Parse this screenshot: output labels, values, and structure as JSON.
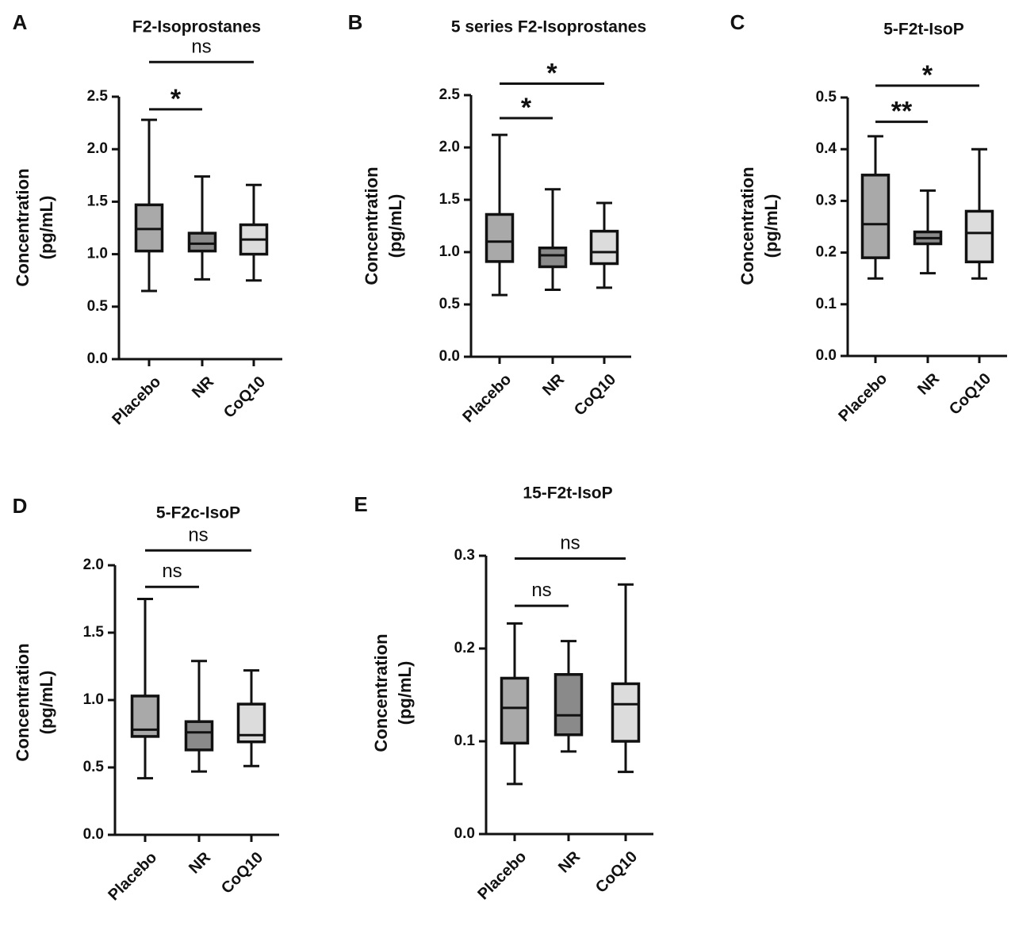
{
  "colors": {
    "Placebo": "#a9a9a9",
    "NR": "#8a8a8a",
    "CoQ10": "#dcdcdc",
    "stroke": "#111111"
  },
  "chart_data": [
    {
      "type": "box",
      "panel": "A",
      "title": "F2-Isoprostanes",
      "ylabel": [
        "Concentration",
        "(pg/mL)"
      ],
      "ylim": [
        0,
        2.5
      ],
      "yticks": [
        "0.0",
        "0.5",
        "1.0",
        "1.5",
        "2.0",
        "2.5"
      ],
      "categories": [
        "Placebo",
        "NR",
        "CoQ10"
      ],
      "boxes": [
        {
          "name": "Placebo",
          "min": 0.65,
          "q1": 1.03,
          "median": 1.24,
          "q3": 1.47,
          "max": 2.28
        },
        {
          "name": "NR",
          "min": 0.76,
          "q1": 1.03,
          "median": 1.1,
          "q3": 1.2,
          "max": 1.74
        },
        {
          "name": "CoQ10",
          "min": 0.75,
          "q1": 1.0,
          "median": 1.14,
          "q3": 1.28,
          "max": 1.66
        }
      ],
      "significance": [
        {
          "from": "Placebo",
          "to": "NR",
          "label": "*",
          "level": 2.38
        },
        {
          "from": "Placebo",
          "to": "CoQ10",
          "label": "ns",
          "level": 2.83
        }
      ]
    },
    {
      "type": "box",
      "panel": "B",
      "title": "5 series F2-Isoprostanes",
      "ylabel": [
        "Concentration",
        "(pg/mL)"
      ],
      "ylim": [
        0,
        2.5
      ],
      "yticks": [
        "0.0",
        "0.5",
        "1.0",
        "1.5",
        "2.0",
        "2.5"
      ],
      "categories": [
        "Placebo",
        "NR",
        "CoQ10"
      ],
      "boxes": [
        {
          "name": "Placebo",
          "min": 0.59,
          "q1": 0.91,
          "median": 1.1,
          "q3": 1.36,
          "max": 2.12
        },
        {
          "name": "NR",
          "min": 0.64,
          "q1": 0.86,
          "median": 0.97,
          "q3": 1.04,
          "max": 1.6
        },
        {
          "name": "CoQ10",
          "min": 0.66,
          "q1": 0.89,
          "median": 1.0,
          "q3": 1.2,
          "max": 1.47
        }
      ],
      "significance": [
        {
          "from": "Placebo",
          "to": "NR",
          "label": "*",
          "level": 2.28
        },
        {
          "from": "Placebo",
          "to": "CoQ10",
          "label": "*",
          "level": 2.61
        }
      ]
    },
    {
      "type": "box",
      "panel": "C",
      "title": "5-F2t-IsoP",
      "ylabel": [
        "Concentration",
        "(pg/mL)"
      ],
      "ylim": [
        0,
        0.5
      ],
      "yticks": [
        "0.0",
        "0.1",
        "0.2",
        "0.3",
        "0.4",
        "0.5"
      ],
      "categories": [
        "Placebo",
        "NR",
        "CoQ10"
      ],
      "boxes": [
        {
          "name": "Placebo",
          "min": 0.15,
          "q1": 0.19,
          "median": 0.255,
          "q3": 0.35,
          "max": 0.425
        },
        {
          "name": "NR",
          "min": 0.16,
          "q1": 0.217,
          "median": 0.228,
          "q3": 0.24,
          "max": 0.32
        },
        {
          "name": "CoQ10",
          "min": 0.15,
          "q1": 0.182,
          "median": 0.238,
          "q3": 0.28,
          "max": 0.4
        }
      ],
      "significance": [
        {
          "from": "Placebo",
          "to": "NR",
          "label": "**",
          "level": 0.453
        },
        {
          "from": "Placebo",
          "to": "CoQ10",
          "label": "*",
          "level": 0.523
        }
      ]
    },
    {
      "type": "box",
      "panel": "D",
      "title": "5-F2c-IsoP",
      "ylabel": [
        "Concentration",
        "(pg/mL)"
      ],
      "ylim": [
        0,
        2.0
      ],
      "yticks": [
        "0.0",
        "0.5",
        "1.0",
        "1.5",
        "2.0"
      ],
      "categories": [
        "Placebo",
        "NR",
        "CoQ10"
      ],
      "boxes": [
        {
          "name": "Placebo",
          "min": 0.42,
          "q1": 0.73,
          "median": 0.78,
          "q3": 1.03,
          "max": 1.75
        },
        {
          "name": "NR",
          "min": 0.47,
          "q1": 0.63,
          "median": 0.76,
          "q3": 0.84,
          "max": 1.29
        },
        {
          "name": "CoQ10",
          "min": 0.51,
          "q1": 0.69,
          "median": 0.74,
          "q3": 0.97,
          "max": 1.22
        }
      ],
      "significance": [
        {
          "from": "Placebo",
          "to": "NR",
          "label": "ns",
          "level": 1.84
        },
        {
          "from": "Placebo",
          "to": "CoQ10",
          "label": "ns",
          "level": 2.11
        }
      ]
    },
    {
      "type": "box",
      "panel": "E",
      "title": "15-F2t-IsoP",
      "ylabel": [
        "Concentration",
        "(pg/mL)"
      ],
      "ylim": [
        0,
        0.3
      ],
      "yticks": [
        "0.0",
        "0.1",
        "0.2",
        "0.3"
      ],
      "categories": [
        "Placebo",
        "NR",
        "CoQ10"
      ],
      "boxes": [
        {
          "name": "Placebo",
          "min": 0.054,
          "q1": 0.098,
          "median": 0.136,
          "q3": 0.168,
          "max": 0.227
        },
        {
          "name": "NR",
          "min": 0.089,
          "q1": 0.107,
          "median": 0.128,
          "q3": 0.172,
          "max": 0.208
        },
        {
          "name": "CoQ10",
          "min": 0.067,
          "q1": 0.1,
          "median": 0.14,
          "q3": 0.162,
          "max": 0.269
        }
      ],
      "significance": [
        {
          "from": "Placebo",
          "to": "NR",
          "label": "ns",
          "level": 0.246
        },
        {
          "from": "Placebo",
          "to": "CoQ10",
          "label": "ns",
          "level": 0.297
        }
      ]
    }
  ]
}
